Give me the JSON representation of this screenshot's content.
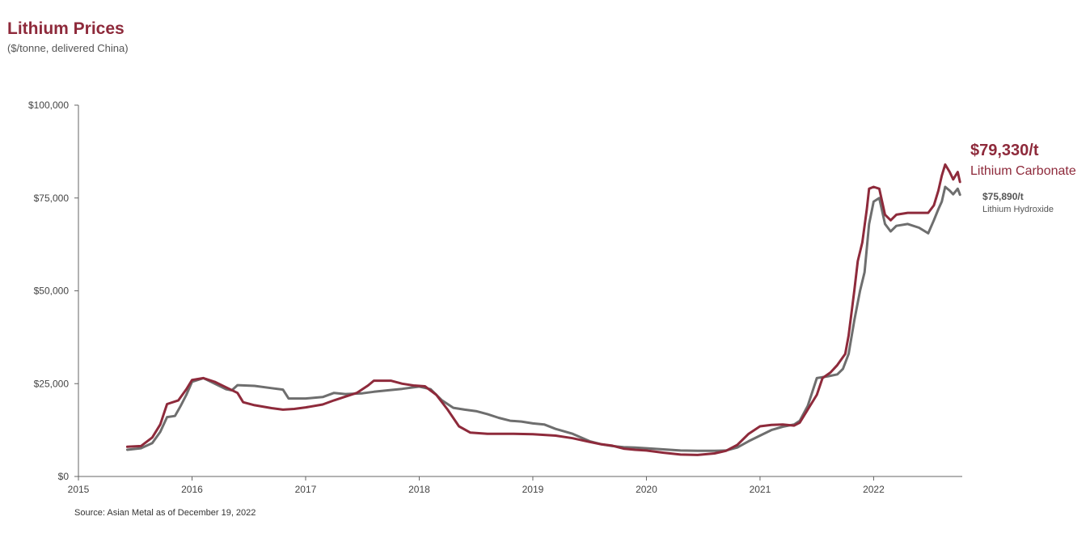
{
  "header": {
    "title": "Lithium Prices",
    "subtitle": "($/tonne, delivered China)"
  },
  "footer": {
    "source": "Source: Asian Metal as of December 19, 2022"
  },
  "annotations": {
    "carbonate_value": "$79,330/t",
    "carbonate_label": "Lithium Carbonate",
    "hydroxide_value": "$75,890/t",
    "hydroxide_label": "Lithium Hydroxide"
  },
  "chart_data": {
    "type": "line",
    "title": "Lithium Prices",
    "subtitle": "($/tonne, delivered China)",
    "xlabel": "",
    "ylabel": "",
    "xlim": [
      2015,
      2022.78
    ],
    "ylim": [
      0,
      100000
    ],
    "x_ticks": [
      "2015",
      "2016",
      "2017",
      "2018",
      "2019",
      "2020",
      "2021",
      "2022"
    ],
    "y_ticks": [
      "$0",
      "$25,000",
      "$50,000",
      "$75,000",
      "$100,000"
    ],
    "y_tick_values": [
      0,
      25000,
      50000,
      75000,
      100000
    ],
    "x_tick_values": [
      2015,
      2016,
      2017,
      2018,
      2019,
      2020,
      2021,
      2022
    ],
    "grid": false,
    "legend": "direct labels at right end of lines",
    "colors": {
      "carbonate": "#8e2a3b",
      "hydroxide": "#6e6e6e"
    },
    "series": [
      {
        "name": "Lithium Carbonate",
        "color": "#8e2a3b",
        "points": [
          [
            2015.43,
            8000
          ],
          [
            2015.55,
            8200
          ],
          [
            2015.65,
            10500
          ],
          [
            2015.72,
            14000
          ],
          [
            2015.78,
            19500
          ],
          [
            2015.88,
            20500
          ],
          [
            2015.95,
            23500
          ],
          [
            2016.0,
            26000
          ],
          [
            2016.1,
            26500
          ],
          [
            2016.2,
            25500
          ],
          [
            2016.3,
            24000
          ],
          [
            2016.4,
            22500
          ],
          [
            2016.45,
            20000
          ],
          [
            2016.55,
            19200
          ],
          [
            2016.7,
            18400
          ],
          [
            2016.8,
            18000
          ],
          [
            2016.9,
            18200
          ],
          [
            2017.0,
            18600
          ],
          [
            2017.15,
            19400
          ],
          [
            2017.25,
            20500
          ],
          [
            2017.35,
            21500
          ],
          [
            2017.45,
            22500
          ],
          [
            2017.55,
            24500
          ],
          [
            2017.6,
            25800
          ],
          [
            2017.75,
            25800
          ],
          [
            2017.85,
            25000
          ],
          [
            2017.95,
            24500
          ],
          [
            2018.05,
            24300
          ],
          [
            2018.15,
            22000
          ],
          [
            2018.25,
            18000
          ],
          [
            2018.35,
            13500
          ],
          [
            2018.45,
            11800
          ],
          [
            2018.6,
            11500
          ],
          [
            2018.8,
            11500
          ],
          [
            2019.0,
            11400
          ],
          [
            2019.2,
            11000
          ],
          [
            2019.35,
            10300
          ],
          [
            2019.5,
            9300
          ],
          [
            2019.6,
            8700
          ],
          [
            2019.7,
            8300
          ],
          [
            2019.8,
            7500
          ],
          [
            2019.9,
            7200
          ],
          [
            2020.0,
            7000
          ],
          [
            2020.15,
            6400
          ],
          [
            2020.3,
            5900
          ],
          [
            2020.45,
            5800
          ],
          [
            2020.6,
            6200
          ],
          [
            2020.7,
            6900
          ],
          [
            2020.8,
            8500
          ],
          [
            2020.9,
            11500
          ],
          [
            2021.0,
            13500
          ],
          [
            2021.1,
            13900
          ],
          [
            2021.2,
            14000
          ],
          [
            2021.3,
            13700
          ],
          [
            2021.35,
            14500
          ],
          [
            2021.42,
            18000
          ],
          [
            2021.5,
            22000
          ],
          [
            2021.55,
            26500
          ],
          [
            2021.62,
            28000
          ],
          [
            2021.68,
            30000
          ],
          [
            2021.75,
            33000
          ],
          [
            2021.78,
            38000
          ],
          [
            2021.83,
            50000
          ],
          [
            2021.86,
            58000
          ],
          [
            2021.9,
            63000
          ],
          [
            2021.94,
            72000
          ],
          [
            2021.96,
            77500
          ],
          [
            2022.0,
            78000
          ],
          [
            2022.05,
            77500
          ],
          [
            2022.1,
            70500
          ],
          [
            2022.15,
            69000
          ],
          [
            2022.2,
            70500
          ],
          [
            2022.3,
            71000
          ],
          [
            2022.4,
            71000
          ],
          [
            2022.48,
            71000
          ],
          [
            2022.53,
            73000
          ],
          [
            2022.57,
            77000
          ],
          [
            2022.6,
            81000
          ],
          [
            2022.63,
            84000
          ],
          [
            2022.67,
            82000
          ],
          [
            2022.7,
            80000
          ],
          [
            2022.74,
            82000
          ],
          [
            2022.76,
            79330
          ]
        ]
      },
      {
        "name": "Lithium Hydroxide",
        "color": "#6e6e6e",
        "points": [
          [
            2015.43,
            7200
          ],
          [
            2015.55,
            7600
          ],
          [
            2015.65,
            9000
          ],
          [
            2015.72,
            12000
          ],
          [
            2015.78,
            16000
          ],
          [
            2015.85,
            16300
          ],
          [
            2015.9,
            19000
          ],
          [
            2015.95,
            22000
          ],
          [
            2016.0,
            25500
          ],
          [
            2016.1,
            26500
          ],
          [
            2016.2,
            25000
          ],
          [
            2016.3,
            23500
          ],
          [
            2016.35,
            23200
          ],
          [
            2016.4,
            24600
          ],
          [
            2016.55,
            24400
          ],
          [
            2016.7,
            23800
          ],
          [
            2016.8,
            23400
          ],
          [
            2016.85,
            21000
          ],
          [
            2017.0,
            21000
          ],
          [
            2017.15,
            21400
          ],
          [
            2017.25,
            22500
          ],
          [
            2017.35,
            22200
          ],
          [
            2017.5,
            22400
          ],
          [
            2017.6,
            22800
          ],
          [
            2017.75,
            23300
          ],
          [
            2017.85,
            23600
          ],
          [
            2018.0,
            24200
          ],
          [
            2018.1,
            23500
          ],
          [
            2018.2,
            20500
          ],
          [
            2018.3,
            18500
          ],
          [
            2018.4,
            18000
          ],
          [
            2018.5,
            17600
          ],
          [
            2018.6,
            16800
          ],
          [
            2018.7,
            15800
          ],
          [
            2018.8,
            15000
          ],
          [
            2018.9,
            14800
          ],
          [
            2019.0,
            14300
          ],
          [
            2019.1,
            14000
          ],
          [
            2019.2,
            12800
          ],
          [
            2019.35,
            11500
          ],
          [
            2019.5,
            9500
          ],
          [
            2019.6,
            8700
          ],
          [
            2019.7,
            8200
          ],
          [
            2019.8,
            7900
          ],
          [
            2019.9,
            7800
          ],
          [
            2020.0,
            7600
          ],
          [
            2020.15,
            7300
          ],
          [
            2020.3,
            7000
          ],
          [
            2020.45,
            6900
          ],
          [
            2020.6,
            6900
          ],
          [
            2020.7,
            7000
          ],
          [
            2020.8,
            7800
          ],
          [
            2020.9,
            9500
          ],
          [
            2021.0,
            11000
          ],
          [
            2021.1,
            12500
          ],
          [
            2021.2,
            13400
          ],
          [
            2021.3,
            14000
          ],
          [
            2021.35,
            15000
          ],
          [
            2021.42,
            19000
          ],
          [
            2021.5,
            26500
          ],
          [
            2021.6,
            27000
          ],
          [
            2021.68,
            27500
          ],
          [
            2021.73,
            29000
          ],
          [
            2021.78,
            33000
          ],
          [
            2021.83,
            42000
          ],
          [
            2021.88,
            50000
          ],
          [
            2021.92,
            55000
          ],
          [
            2021.96,
            68000
          ],
          [
            2022.0,
            74000
          ],
          [
            2022.05,
            75000
          ],
          [
            2022.1,
            68000
          ],
          [
            2022.15,
            66000
          ],
          [
            2022.2,
            67500
          ],
          [
            2022.3,
            68000
          ],
          [
            2022.4,
            67000
          ],
          [
            2022.48,
            65500
          ],
          [
            2022.53,
            69000
          ],
          [
            2022.57,
            72000
          ],
          [
            2022.6,
            74000
          ],
          [
            2022.63,
            78000
          ],
          [
            2022.67,
            77000
          ],
          [
            2022.7,
            76000
          ],
          [
            2022.74,
            77500
          ],
          [
            2022.76,
            75890
          ]
        ]
      }
    ]
  }
}
